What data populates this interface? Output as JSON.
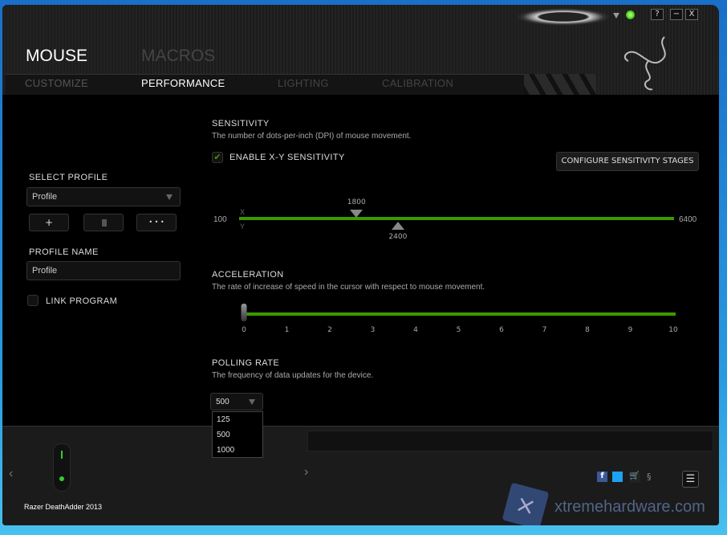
{
  "window_controls": {
    "help": "?",
    "minimize": "−",
    "close": "X"
  },
  "nav": {
    "top_tabs": [
      "MOUSE",
      "MACROS"
    ],
    "active_top": "MOUSE",
    "sub_tabs": [
      "CUSTOMIZE",
      "PERFORMANCE",
      "LIGHTING",
      "CALIBRATION"
    ],
    "active_sub": "PERFORMANCE"
  },
  "sidebar": {
    "select_profile_label": "SELECT PROFILE",
    "profile_value": "Profile",
    "add_label": "+",
    "delete_icon": "trash-icon",
    "more_label": "• • •",
    "profile_name_label": "PROFILE NAME",
    "profile_name_value": "Profile",
    "link_program_label": "LINK PROGRAM",
    "link_program_checked": false
  },
  "sensitivity": {
    "title": "SENSITIVITY",
    "description": "The number of dots-per-inch (DPI) of mouse movement.",
    "enable_xy_label": "ENABLE X-Y SENSITIVITY",
    "enable_xy_checked": true,
    "configure_button": "CONFIGURE SENSITIVITY STAGES",
    "min": "100",
    "max": "6400",
    "x_label": "X",
    "y_label": "Y",
    "x_value": "1800",
    "y_value": "2400"
  },
  "acceleration": {
    "title": "ACCELERATION",
    "description": "The rate of increase of speed in the cursor with respect to mouse movement.",
    "value": 0,
    "ticks": [
      "0",
      "1",
      "2",
      "3",
      "4",
      "5",
      "6",
      "7",
      "8",
      "9",
      "10"
    ]
  },
  "polling": {
    "title": "POLLING RATE",
    "description": "The frequency of data updates for the device.",
    "selected": "500",
    "options": [
      "125",
      "500",
      "1000"
    ]
  },
  "footer": {
    "device_name": "Razer DeathAdder 2013",
    "prev": "‹",
    "next": "›",
    "social_icons": [
      "facebook-icon",
      "twitter-icon",
      "cart-icon",
      "razer-icon"
    ],
    "watermark": "xtremehardware.com"
  },
  "colors": {
    "accent": "#3a9a00",
    "background": "#000000"
  }
}
